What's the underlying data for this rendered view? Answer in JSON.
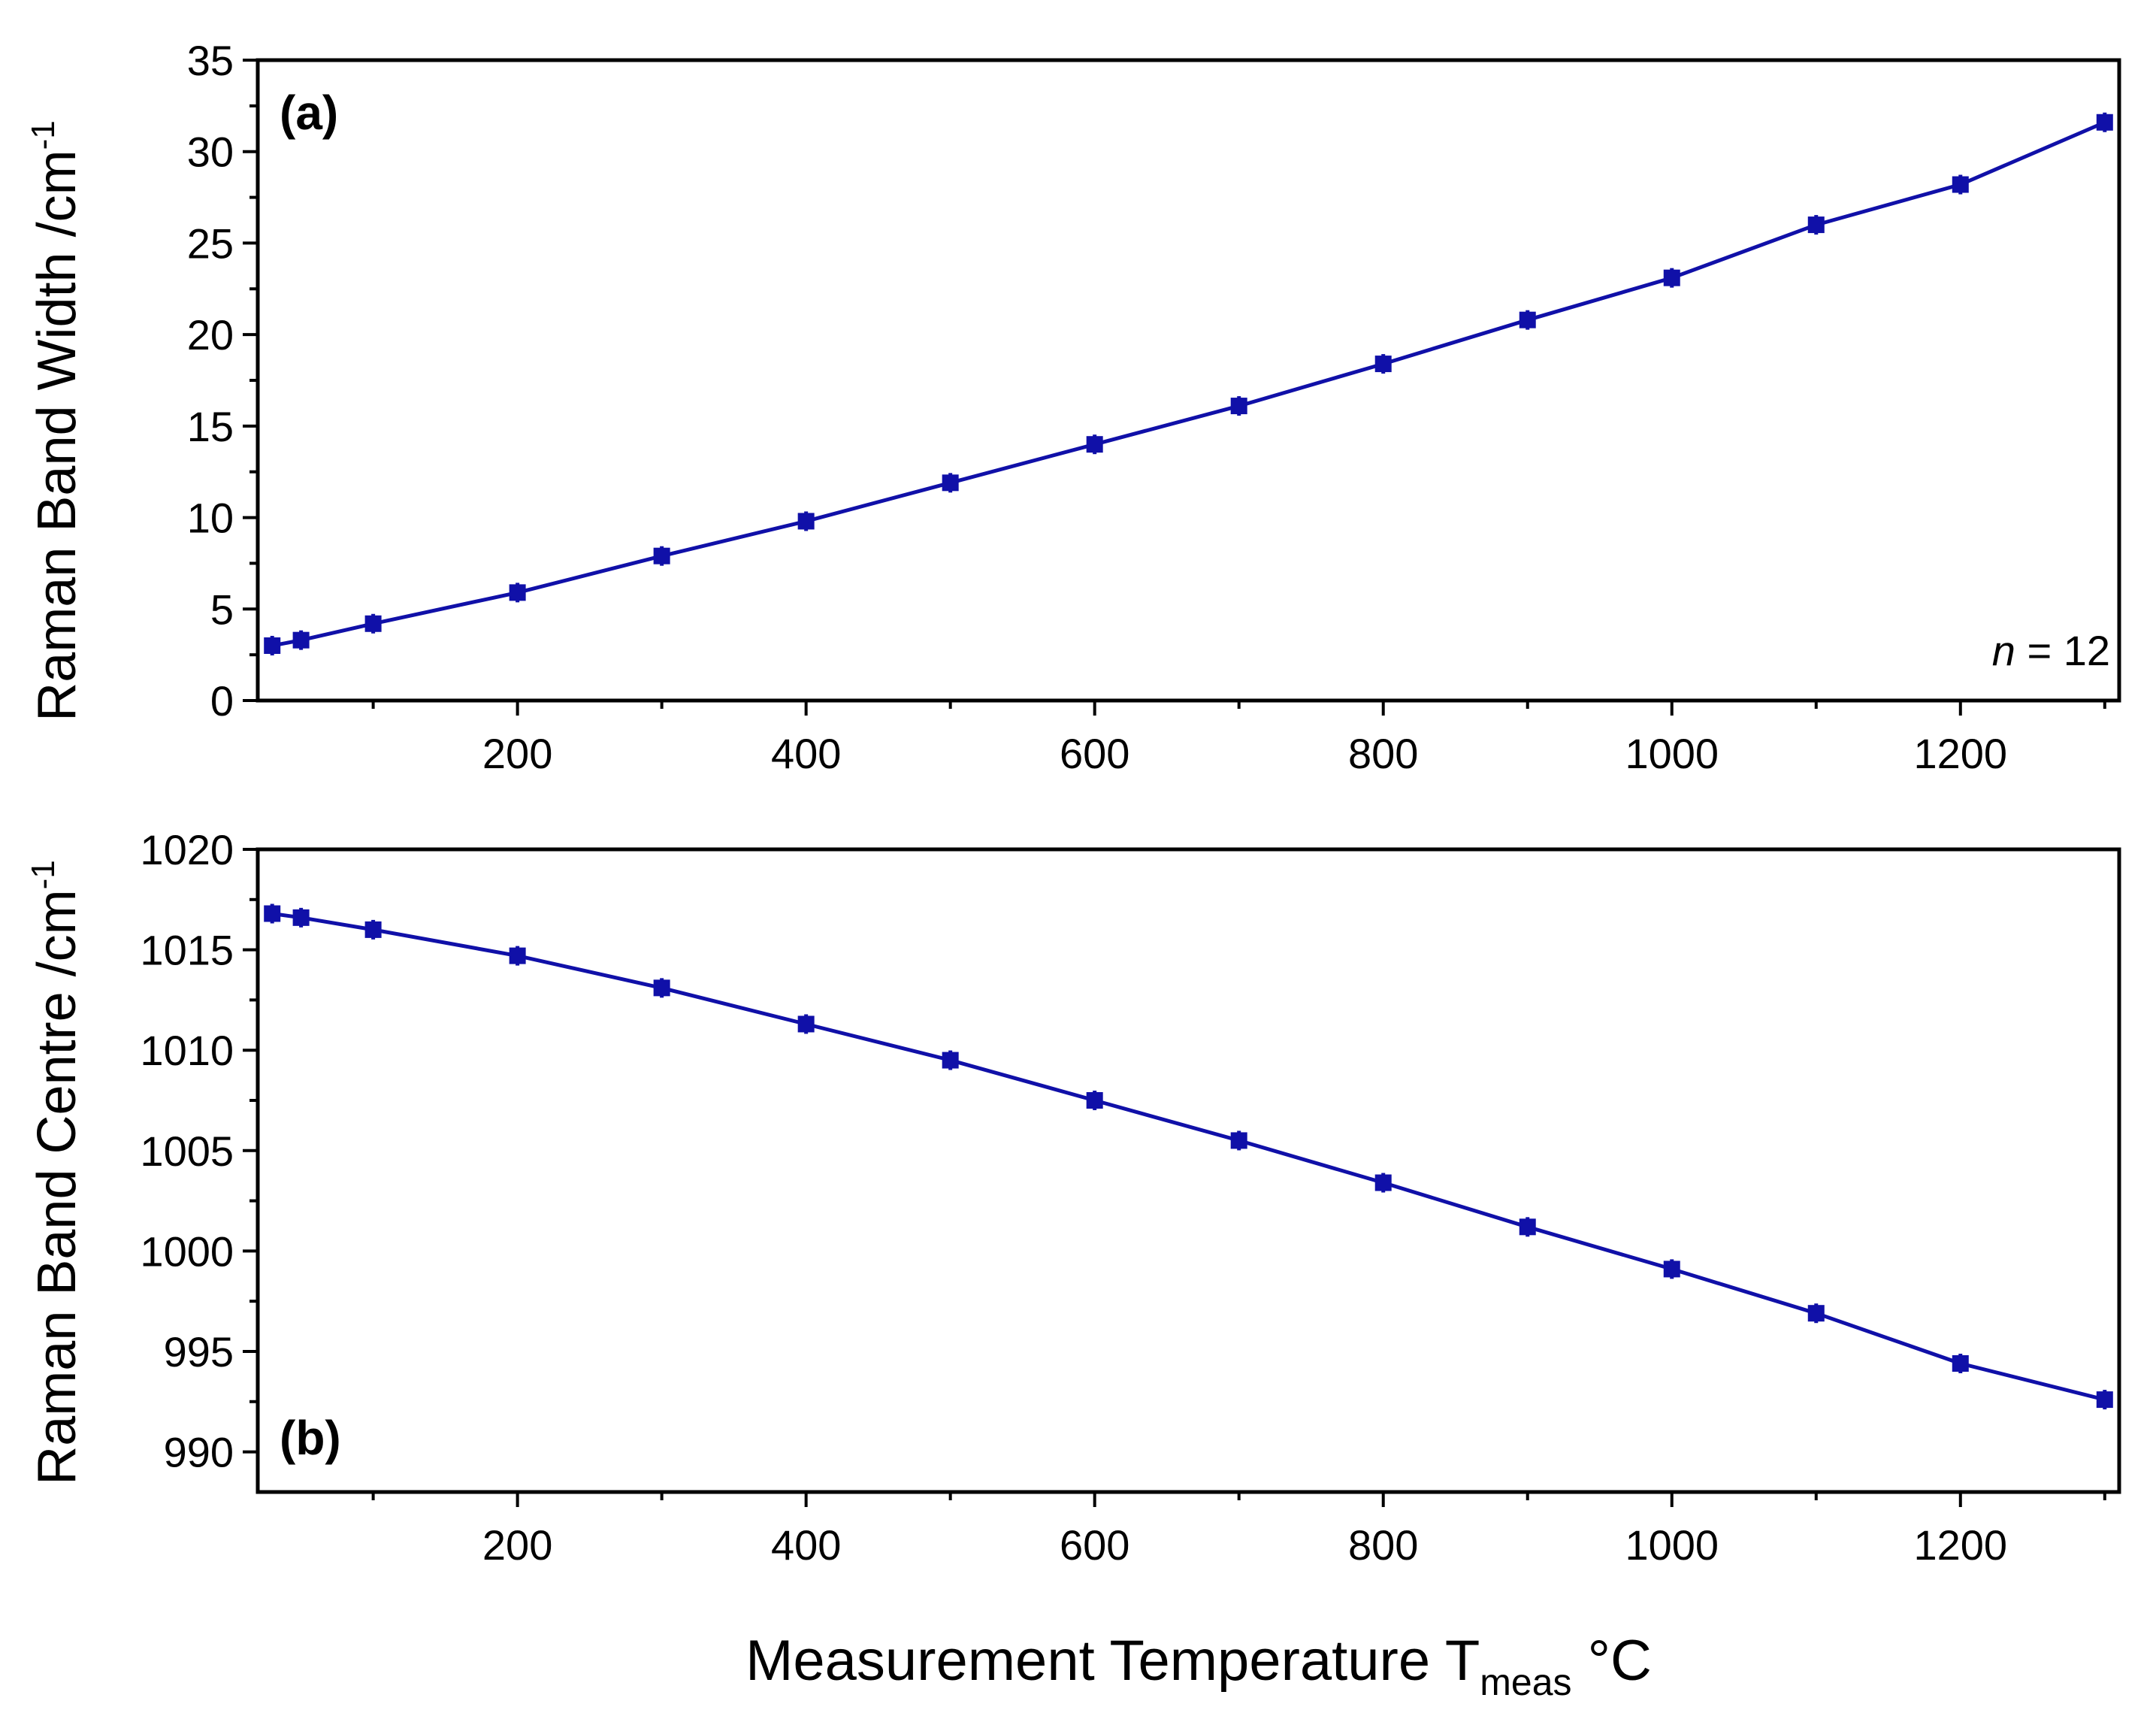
{
  "figure": {
    "xlabel_main": "Measurement Temperature T",
    "xlabel_sub": "meas",
    "xlabel_unit": " °C"
  },
  "colors": {
    "series": "#1010a8",
    "axis": "#000000",
    "background": "#ffffff"
  },
  "chart_data": [
    {
      "type": "line",
      "panel_label": "(a)",
      "annotation_italic": "n",
      "annotation_rest": " = 12",
      "ylabel_main": "Raman Band Width /cm",
      "ylabel_sup": "-1",
      "xlim": [
        20,
        1310
      ],
      "ylim": [
        0,
        35
      ],
      "xticks": [
        200,
        400,
        600,
        800,
        1000,
        1200
      ],
      "xtick_labels": [
        "200",
        "400",
        "600",
        "800",
        "1000",
        "1200"
      ],
      "xminor": [
        100,
        300,
        500,
        700,
        900,
        1100,
        1300
      ],
      "yticks": [
        0,
        5,
        10,
        15,
        20,
        25,
        30,
        35
      ],
      "ytick_labels": [
        "0",
        "5",
        "10",
        "15",
        "20",
        "25",
        "30",
        "35"
      ],
      "yminor": [
        2.5,
        7.5,
        12.5,
        17.5,
        22.5,
        27.5,
        32.5
      ],
      "series": [
        {
          "name": "Raman Band Width",
          "x": [
            30,
            50,
            100,
            200,
            300,
            400,
            500,
            600,
            700,
            800,
            900,
            1000,
            1100,
            1200,
            1300
          ],
          "y": [
            3.0,
            3.3,
            4.2,
            5.9,
            7.9,
            9.8,
            11.9,
            14.0,
            16.1,
            18.4,
            20.8,
            23.1,
            26.0,
            28.2,
            31.6
          ]
        }
      ]
    },
    {
      "type": "line",
      "panel_label": "(b)",
      "ylabel_main": "Raman Band Centre /cm",
      "ylabel_sup": "-1",
      "xlim": [
        20,
        1310
      ],
      "ylim": [
        988,
        1020
      ],
      "xticks": [
        200,
        400,
        600,
        800,
        1000,
        1200
      ],
      "xtick_labels": [
        "200",
        "400",
        "600",
        "800",
        "1000",
        "1200"
      ],
      "xminor": [
        100,
        300,
        500,
        700,
        900,
        1100,
        1300
      ],
      "yticks": [
        990,
        995,
        1000,
        1005,
        1010,
        1015,
        1020
      ],
      "ytick_labels": [
        "990",
        "995",
        "1000",
        "1005",
        "1010",
        "1015",
        "1020"
      ],
      "yminor": [
        992.5,
        997.5,
        1002.5,
        1007.5,
        1012.5,
        1017.5
      ],
      "series": [
        {
          "name": "Raman Band Centre",
          "x": [
            30,
            50,
            100,
            200,
            300,
            400,
            500,
            600,
            700,
            800,
            900,
            1000,
            1100,
            1200,
            1300
          ],
          "y": [
            1016.8,
            1016.6,
            1016.0,
            1014.7,
            1013.1,
            1011.3,
            1009.5,
            1007.5,
            1005.5,
            1003.4,
            1001.2,
            999.1,
            996.9,
            994.4,
            992.6
          ]
        }
      ]
    }
  ]
}
